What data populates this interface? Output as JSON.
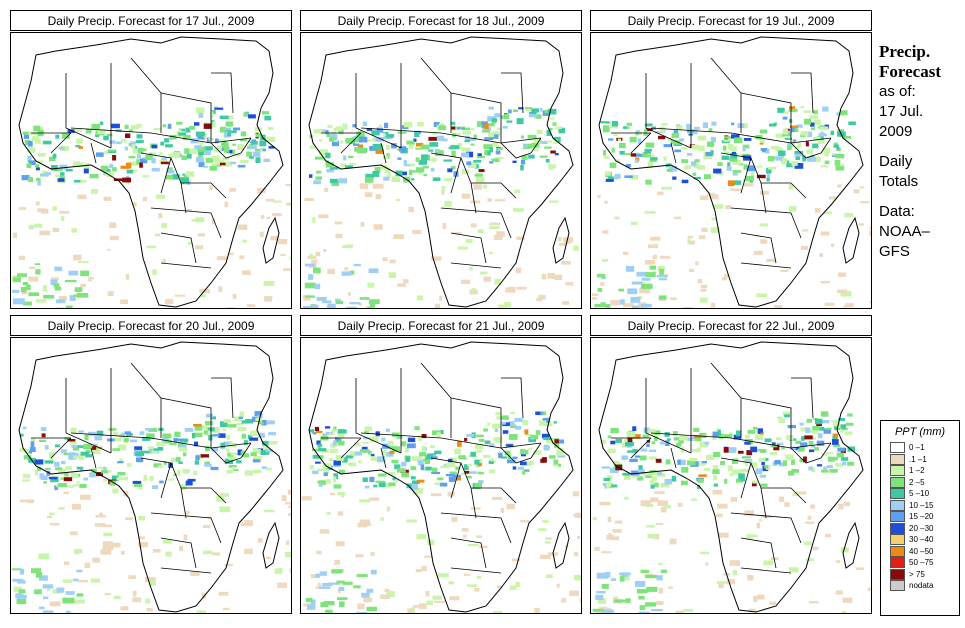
{
  "panels": [
    {
      "title": "Daily Precip. Forecast for  17 Jul., 2009"
    },
    {
      "title": "Daily Precip. Forecast for  18 Jul., 2009"
    },
    {
      "title": "Daily Precip. Forecast for  19 Jul., 2009"
    },
    {
      "title": "Daily Precip. Forecast for  20 Jul., 2009"
    },
    {
      "title": "Daily Precip. Forecast for  21 Jul., 2009"
    },
    {
      "title": "Daily Precip. Forecast for  22 Jul., 2009"
    }
  ],
  "side": {
    "title_line1": "Precip.",
    "title_line2": "Forecast",
    "asof_label": "as of:",
    "asof_date_line1": "17 Jul.",
    "asof_date_line2": "2009",
    "totals_line1": "Daily",
    "totals_line2": "Totals",
    "data_label": "Data:",
    "data_source_line1": "NOAA–",
    "data_source_line2": "GFS"
  },
  "legend": {
    "title": "PPT (mm)",
    "items": [
      {
        "label": "0 –1",
        "color": "#ffffff"
      },
      {
        "label": ".1 –1",
        "color": "#eed9bf"
      },
      {
        "label": "1 –2",
        "color": "#c8f5a8"
      },
      {
        "label": "2 –5",
        "color": "#7ee37a"
      },
      {
        "label": "5 –10",
        "color": "#3fc9a2"
      },
      {
        "label": "10 –15",
        "color": "#9fcff5"
      },
      {
        "label": "15 –20",
        "color": "#5f9ff0"
      },
      {
        "label": "20 –30",
        "color": "#1e4fd8"
      },
      {
        "label": "30 –40",
        "color": "#f5d070"
      },
      {
        "label": "40 –50",
        "color": "#f08a10"
      },
      {
        "label": "50 –75",
        "color": "#e02010"
      },
      {
        "label": "> 75",
        "color": "#8a0a0a"
      },
      {
        "label": "nodata",
        "color": "#cccccc"
      }
    ]
  }
}
